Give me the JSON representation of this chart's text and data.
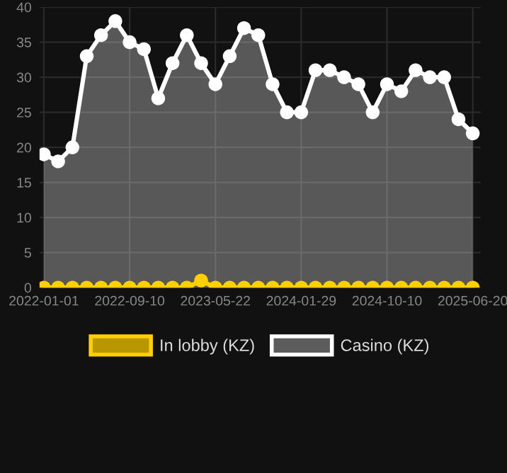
{
  "chart_data": {
    "type": "line",
    "categories": [
      "2022-01-01",
      null,
      null,
      null,
      null,
      null,
      "2022-09-10",
      null,
      null,
      null,
      null,
      null,
      "2023-05-22",
      null,
      null,
      null,
      null,
      null,
      "2024-01-29",
      null,
      null,
      null,
      null,
      null,
      "2024-10-10",
      null,
      null,
      null,
      null,
      null,
      "2025-06-20"
    ],
    "series": [
      {
        "name": "In lobby (KZ)",
        "color": "#ffd000",
        "values": [
          0,
          0,
          0,
          0,
          0,
          0,
          0,
          0,
          0,
          0,
          0,
          1,
          0,
          0,
          0,
          0,
          0,
          0,
          0,
          0,
          0,
          0,
          0,
          0,
          0,
          0,
          0,
          0,
          0,
          0,
          0
        ]
      },
      {
        "name": "Casino (KZ)",
        "type": "area",
        "color": "#ffffff",
        "values": [
          19,
          18,
          20,
          33,
          36,
          38,
          35,
          34,
          27,
          32,
          36,
          32,
          29,
          33,
          37,
          36,
          29,
          25,
          25,
          31,
          31,
          30,
          29,
          25,
          29,
          28,
          31,
          30,
          30,
          24,
          22
        ]
      }
    ],
    "ylim": [
      0,
      40
    ],
    "yticks": [
      0,
      5,
      10,
      15,
      20,
      25,
      30,
      35,
      40
    ],
    "grid": true,
    "legend": "bottom",
    "marker": "circle",
    "line_style": "solid"
  }
}
